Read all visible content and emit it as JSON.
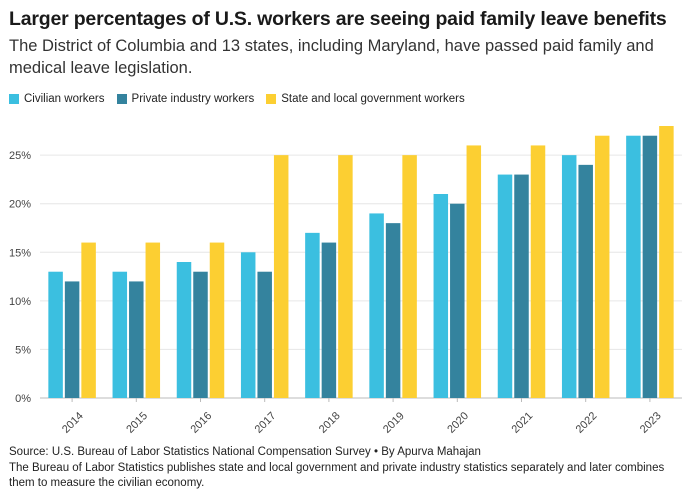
{
  "colors": {
    "civilian": "#3bbfe0",
    "private": "#34839e",
    "state_local": "#fccf32",
    "grid": "#e6e6e6"
  },
  "chart_data": {
    "type": "bar",
    "title": "Larger percentages of U.S. workers are seeing paid family leave benefits",
    "subtitle": "The District of Columbia and 13 states, including Maryland, have passed paid family and medical leave legislation.",
    "categories": [
      "2014",
      "2015",
      "2016",
      "2017",
      "2018",
      "2019",
      "2020",
      "2021",
      "2022",
      "2023"
    ],
    "series": [
      {
        "name": "Civilian workers",
        "values": [
          13,
          13,
          14,
          15,
          17,
          19,
          21,
          23,
          25,
          27
        ]
      },
      {
        "name": "Private industry workers",
        "values": [
          12,
          12,
          13,
          13,
          16,
          18,
          20,
          23,
          24,
          27
        ]
      },
      {
        "name": "State and local government workers",
        "values": [
          16,
          16,
          16,
          25,
          25,
          25,
          26,
          26,
          27,
          28
        ]
      }
    ],
    "yticks": [
      "0%",
      "5%",
      "10%",
      "15%",
      "20%",
      "25%"
    ],
    "ylim": [
      0,
      28
    ],
    "xlabel": "",
    "ylabel": "",
    "grid": true,
    "legend_position": "top-left"
  },
  "footer": {
    "source": "Source: U.S. Bureau of Labor Statistics National Compensation Survey • By Apurva Mahajan",
    "note": "The Bureau of Labor Statistics publishes state and local government and private industry statistics separately and later combines them to measure the civilian economy."
  }
}
